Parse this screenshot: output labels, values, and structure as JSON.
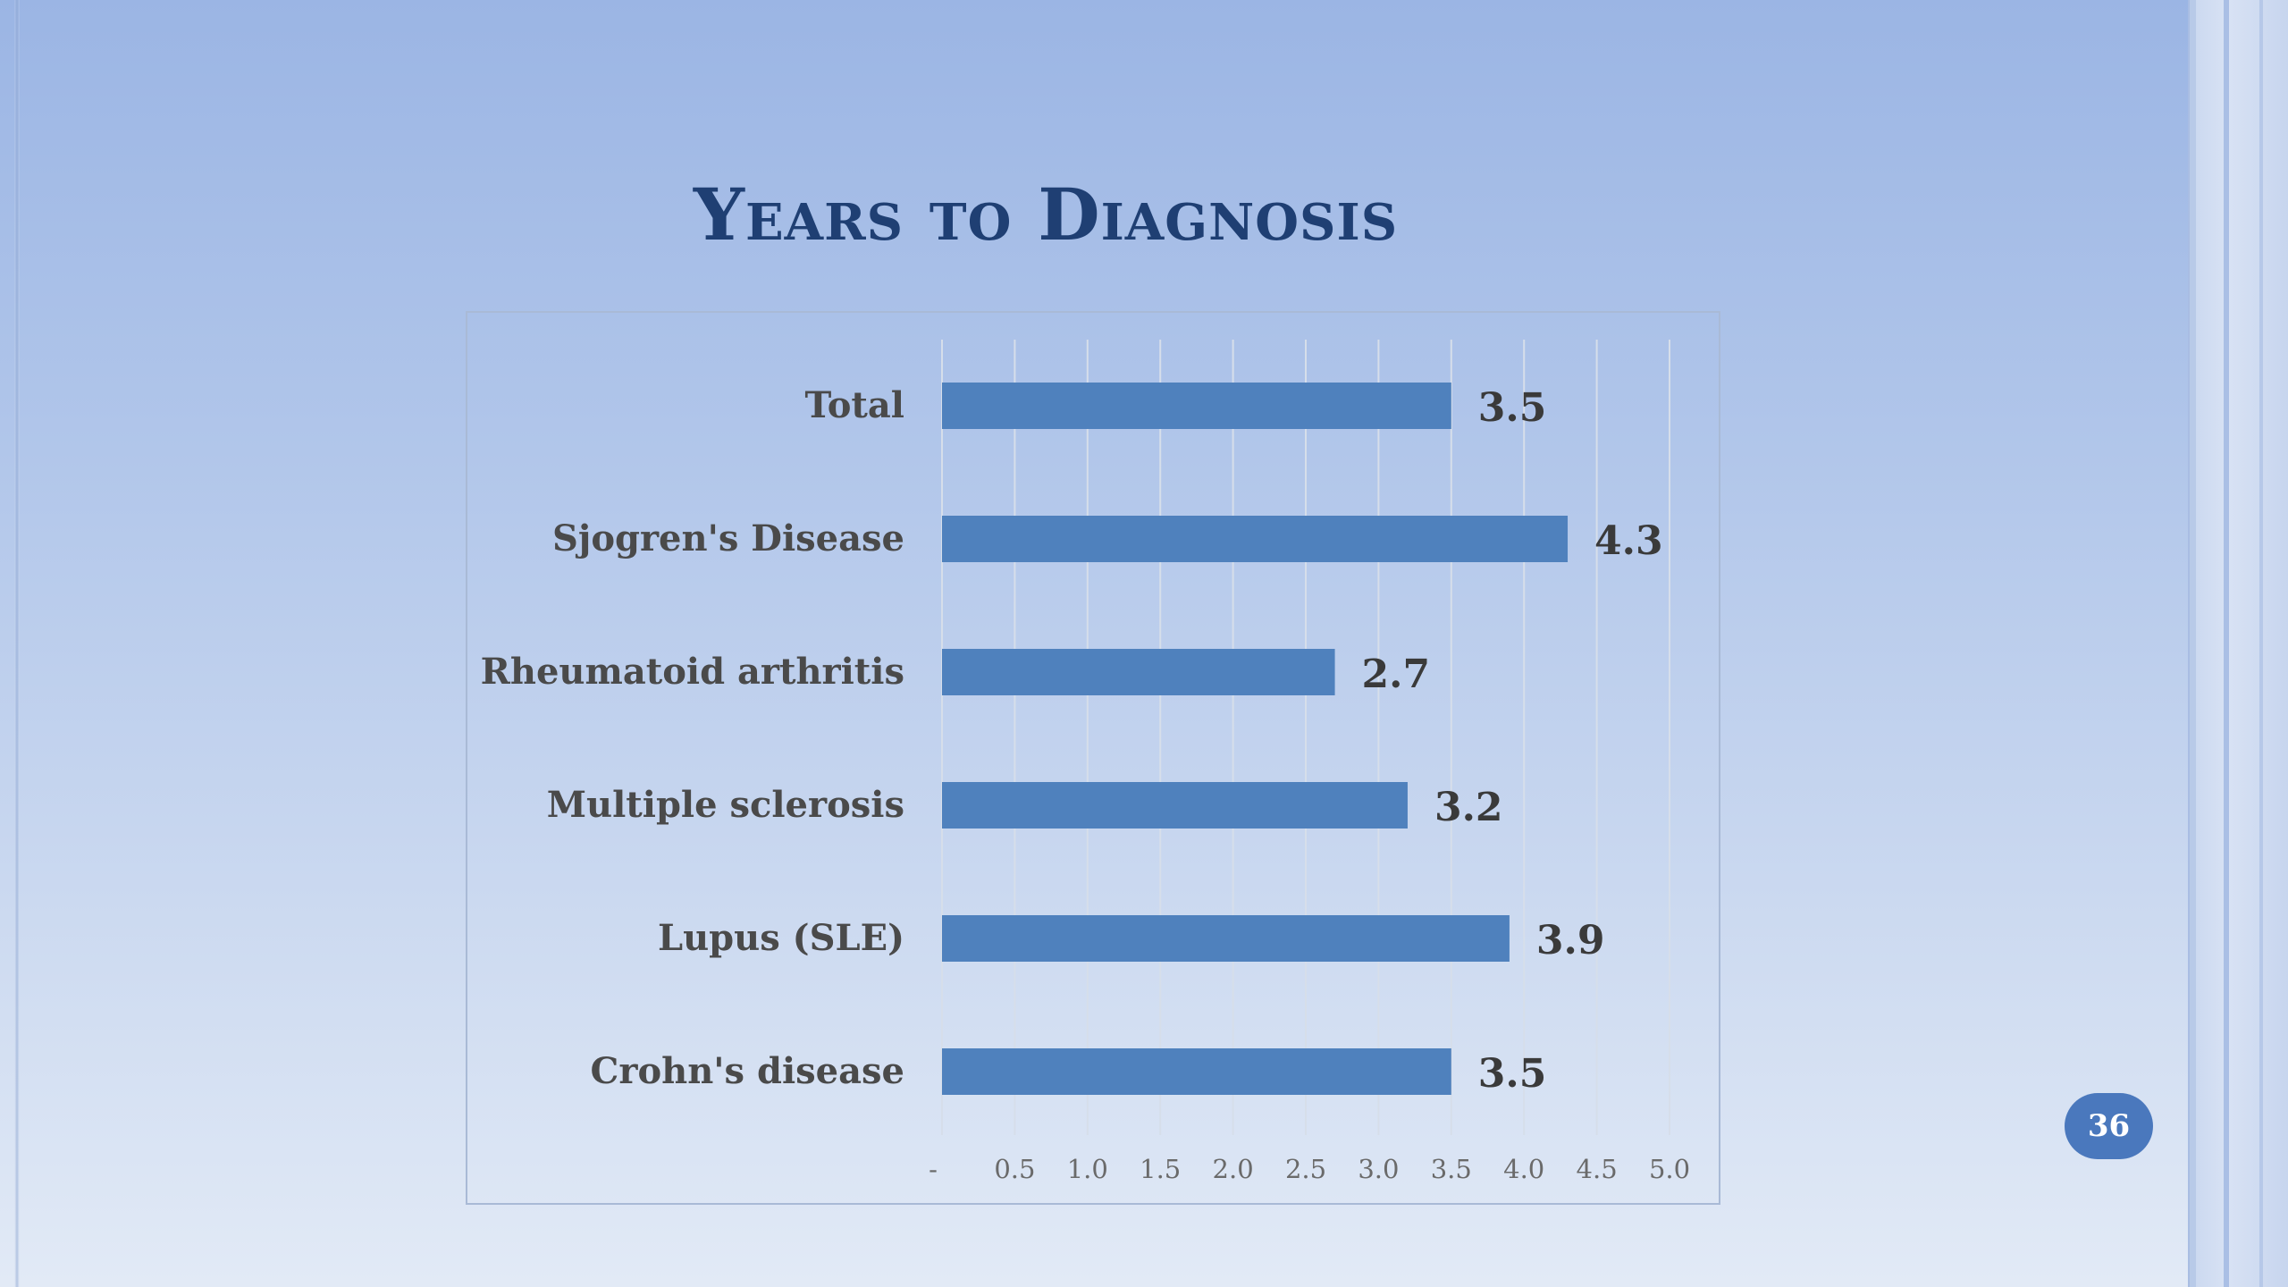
{
  "slide": {
    "title": "Years to Diagnosis",
    "page_number": "36"
  },
  "colors": {
    "bar": "#4f81bd",
    "title": "#1f3f73",
    "category_label": "#4a4a4a",
    "value_label": "#3a3a3a",
    "gridline": "#d6deea",
    "page_badge": "#4a78bd"
  },
  "chart_data": {
    "type": "bar",
    "orientation": "horizontal",
    "title": "",
    "xlabel": "",
    "ylabel": "",
    "categories": [
      "Total",
      "Sjogren's Disease",
      "Rheumatoid arthritis",
      "Multiple sclerosis",
      "Lupus (SLE)",
      "Crohn's disease"
    ],
    "values": [
      3.5,
      4.3,
      2.7,
      3.2,
      3.9,
      3.5
    ],
    "value_labels": [
      "3.5",
      "4.3",
      "2.7",
      "3.2",
      "3.9",
      "3.5"
    ],
    "xlim": [
      0,
      5.0
    ],
    "x_ticks": [
      0,
      0.5,
      1.0,
      1.5,
      2.0,
      2.5,
      3.0,
      3.5,
      4.0,
      4.5,
      5.0
    ],
    "x_tick_labels": [
      "-",
      "0.5",
      "1.0",
      "1.5",
      "2.0",
      "2.5",
      "3.0",
      "3.5",
      "4.0",
      "4.5",
      "5.0"
    ],
    "grid": "vertical",
    "legend": "none"
  }
}
